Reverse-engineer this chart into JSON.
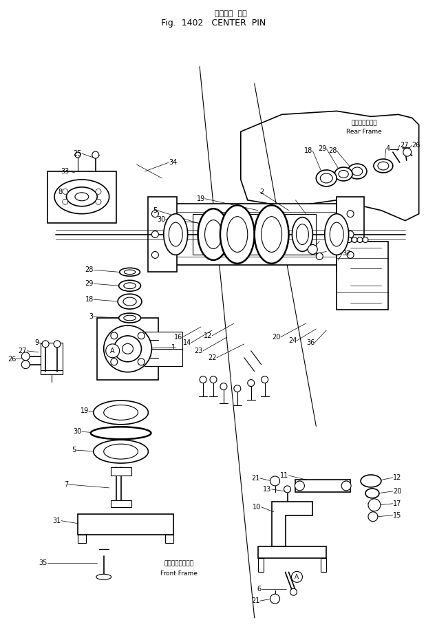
{
  "title_jp": "センター  ピン",
  "title_en": "Fig.  1402   CENTER  PIN",
  "bg_color": "#ffffff",
  "lc": "#000000",
  "fig_width": 6.19,
  "fig_height": 9.3,
  "dpi": 100,
  "rear_frame_jp": "リヤーフレーム",
  "rear_frame_en": "Rear Frame",
  "front_frame_jp": "フロントフレーム",
  "front_frame_en": "Front Frame"
}
